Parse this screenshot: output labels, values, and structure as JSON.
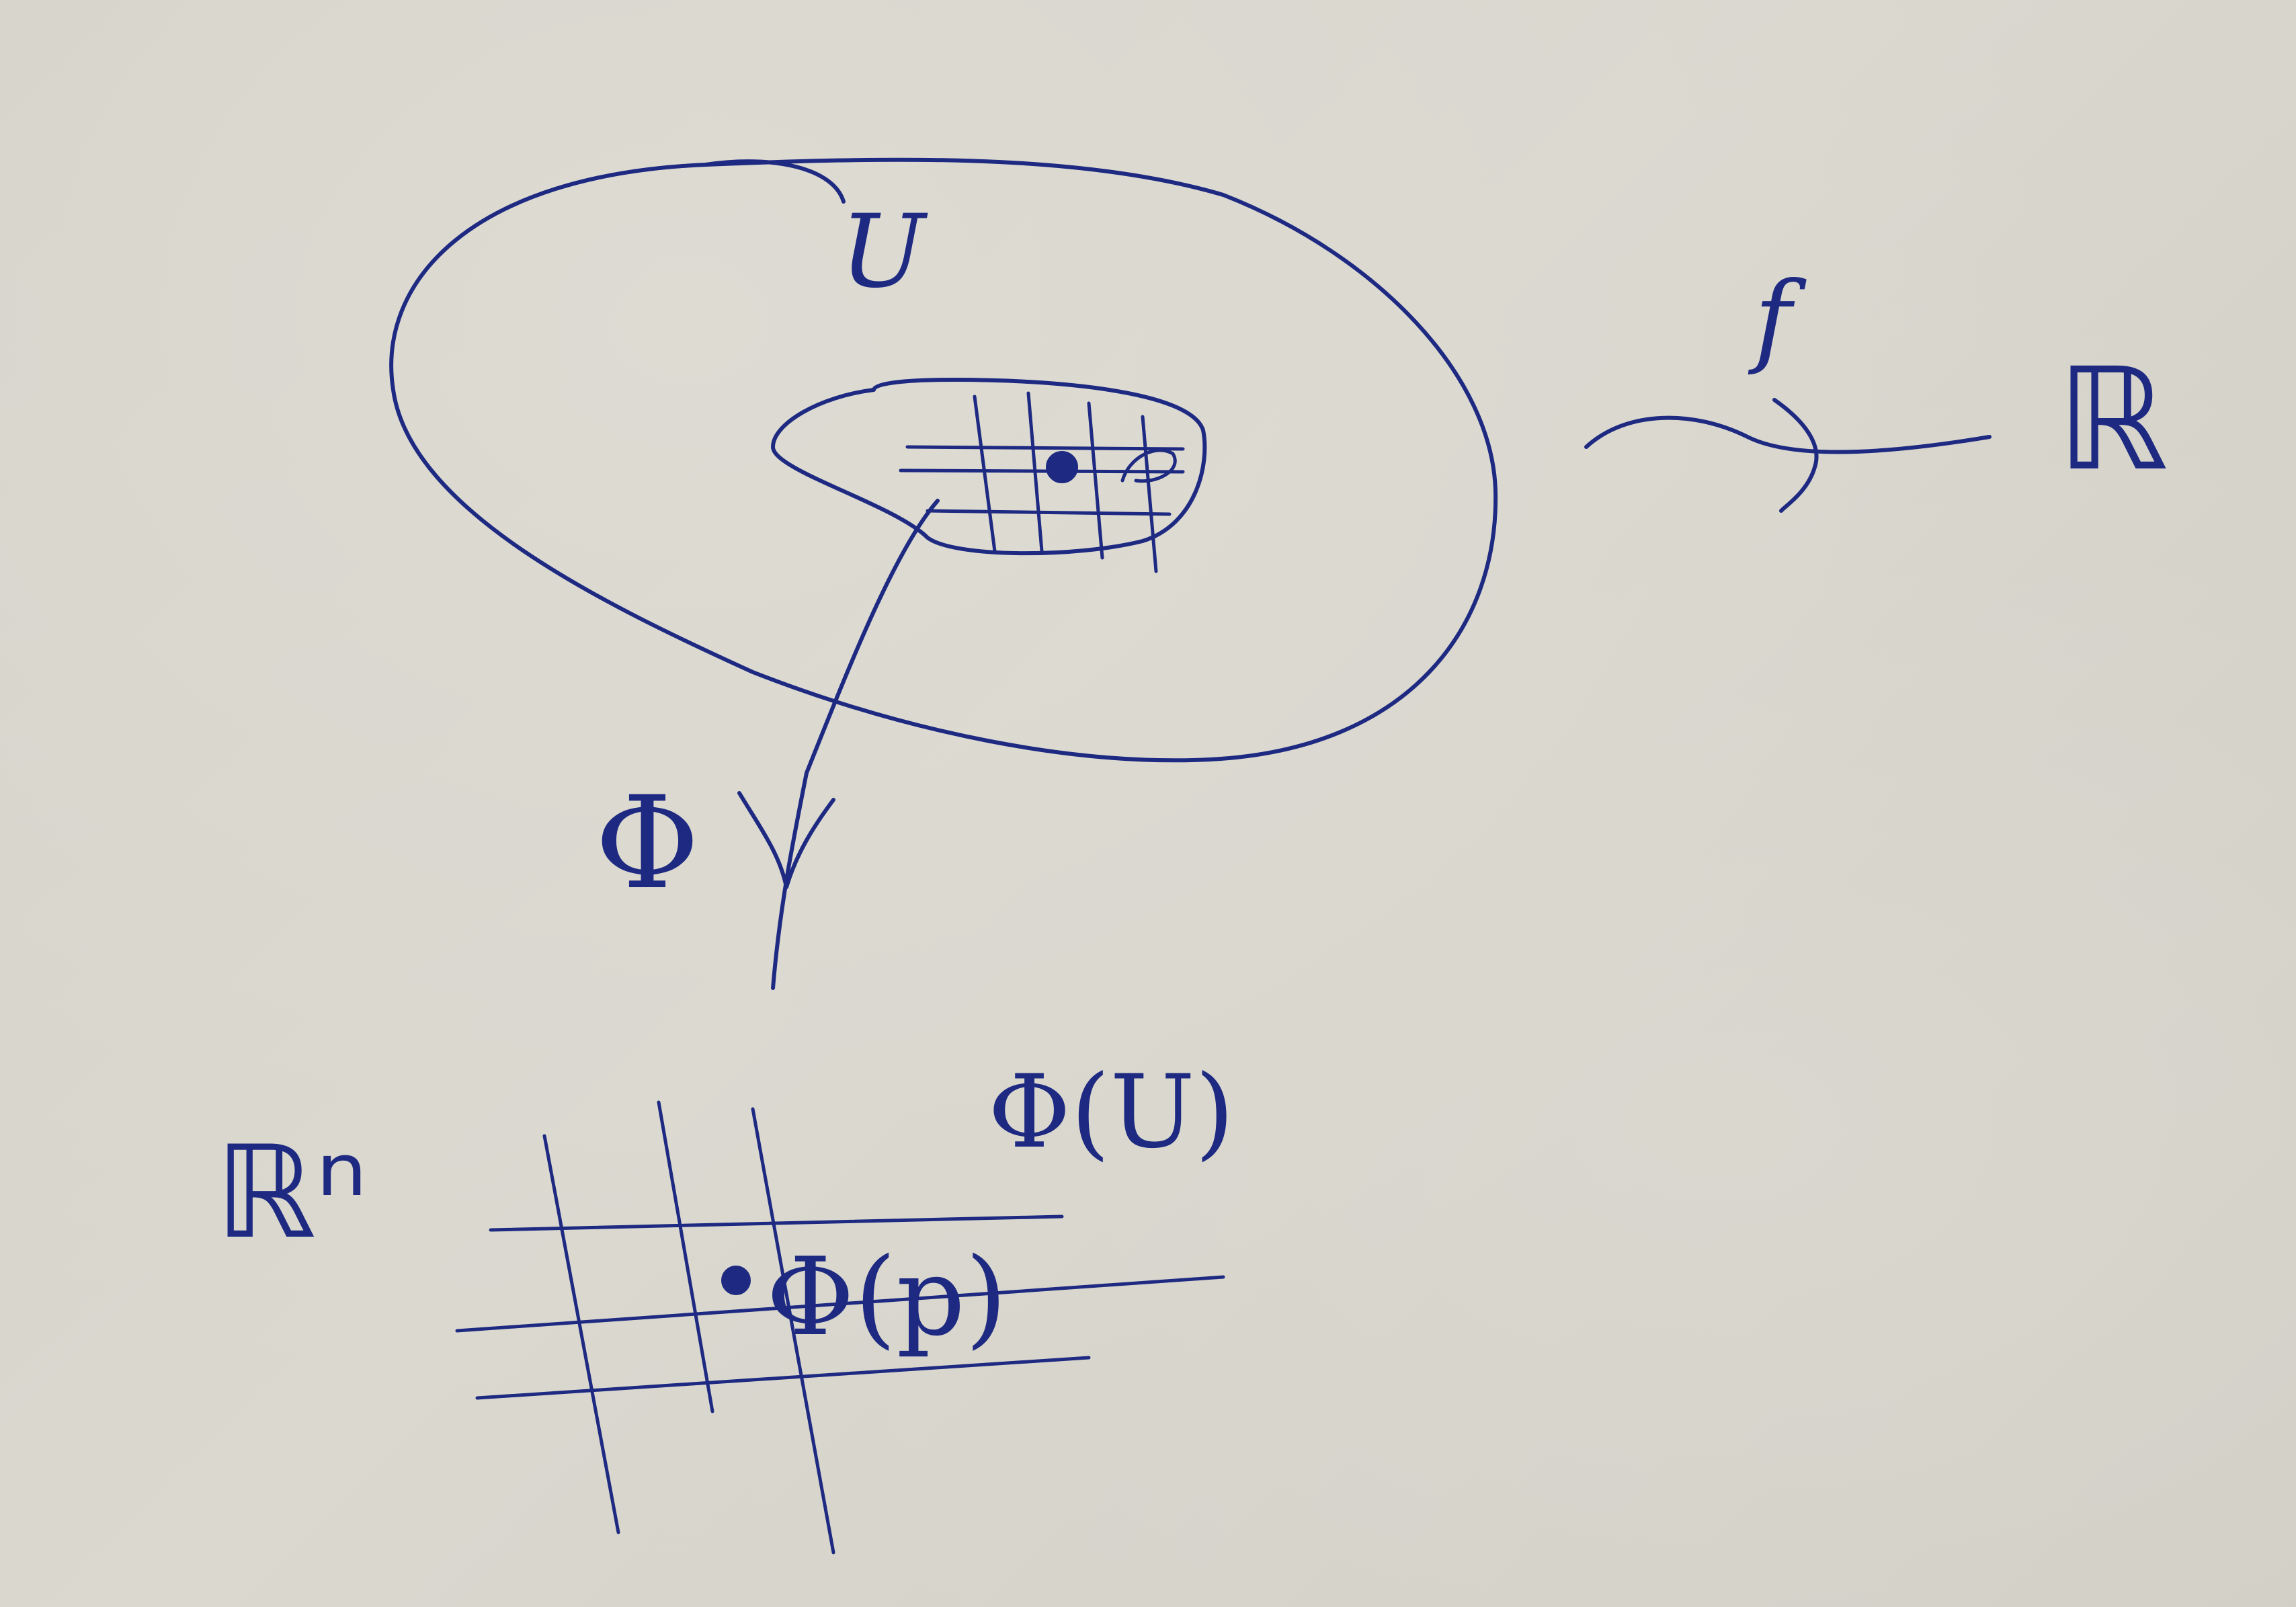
{
  "labels": {
    "open_set": "U",
    "function": "f",
    "reals": "ℝ",
    "chart_map": "Φ",
    "euclidean_space": "ℝⁿ",
    "image_of_u": "Φ(U)",
    "image_of_p": "Φ(p)"
  },
  "colors": {
    "ink": "#1e2a82",
    "paper": "#d6d4cb"
  }
}
